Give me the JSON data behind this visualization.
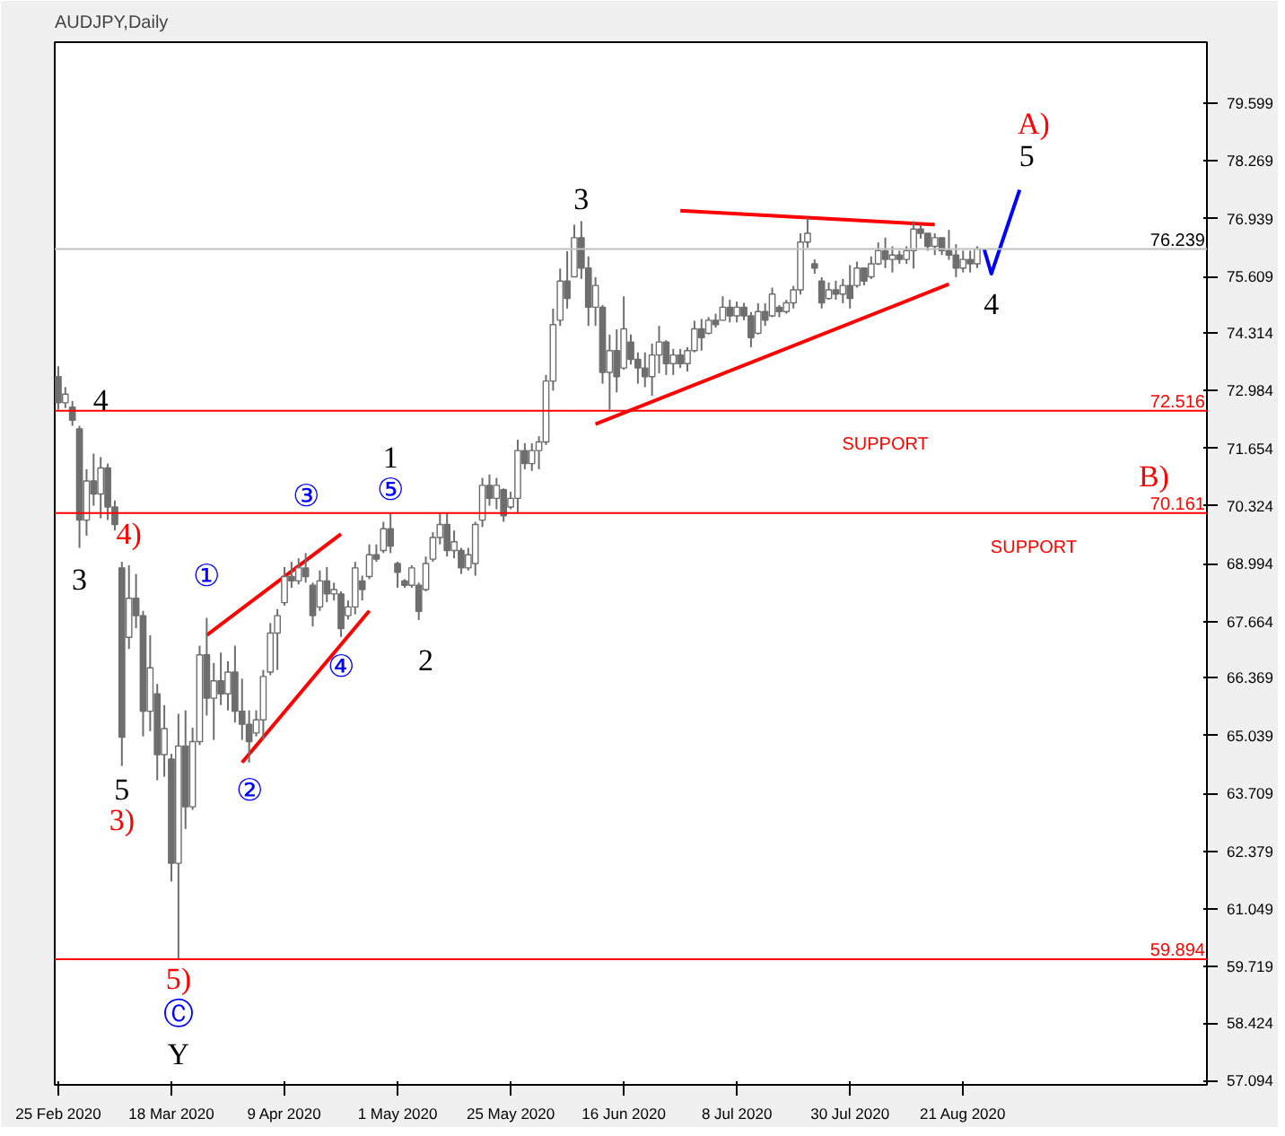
{
  "chart_data": {
    "type": "candlestick",
    "title": "AUDJPY,Daily",
    "categories": [
      "25 Feb 2020",
      null,
      null,
      null,
      null,
      null,
      null,
      null,
      null,
      null,
      null,
      null,
      null,
      null,
      null,
      null,
      "18 Mar 2020",
      null,
      null,
      null,
      null,
      null,
      null,
      null,
      null,
      null,
      null,
      null,
      null,
      null,
      null,
      null,
      "9 Apr 2020",
      null,
      null,
      null,
      null,
      null,
      null,
      null,
      null,
      null,
      null,
      null,
      null,
      null,
      null,
      null,
      "1 May 2020",
      null,
      null,
      null,
      null,
      null,
      null,
      null,
      null,
      null,
      null,
      null,
      null,
      null,
      null,
      null,
      "25 May 2020",
      null,
      null,
      null,
      null,
      null,
      null,
      null,
      null,
      null,
      null,
      null,
      null,
      null,
      null,
      null,
      "16 Jun 2020",
      null,
      null,
      null,
      null,
      null,
      null,
      null,
      null,
      null,
      null,
      null,
      null,
      null,
      null,
      null,
      "8 Jul 2020",
      null,
      null,
      null,
      null,
      null,
      null,
      null,
      null,
      null,
      null,
      null,
      null,
      null,
      null,
      null,
      "30 Jul 2020",
      null,
      null,
      null,
      null,
      null,
      null,
      null,
      null,
      null,
      null,
      null,
      null,
      null,
      null,
      null,
      "21 Aug 2020",
      null,
      null,
      null,
      null,
      null,
      null,
      null,
      null,
      null,
      null,
      null,
      null,
      null,
      null,
      null,
      null,
      null,
      null,
      null,
      null,
      null,
      null,
      null,
      null,
      null,
      null,
      null,
      null,
      null,
      null,
      null,
      null,
      null,
      null
    ],
    "ohlc": [
      [
        73.3,
        73.54,
        72.54,
        72.7
      ],
      [
        72.7,
        73.06,
        72.58,
        72.9
      ],
      [
        72.6,
        72.74,
        72.17,
        72.3
      ],
      [
        72.1,
        72.17,
        69.36,
        70.0
      ],
      [
        70.0,
        71.17,
        69.64,
        70.9
      ],
      [
        70.9,
        71.53,
        70.33,
        70.6
      ],
      [
        70.6,
        71.45,
        70.04,
        71.2
      ],
      [
        71.2,
        71.3,
        70.0,
        70.3
      ],
      [
        70.3,
        70.45,
        69.76,
        69.9
      ],
      [
        68.9,
        69.04,
        64.34,
        65.0
      ],
      [
        67.3,
        68.96,
        67.03,
        68.2
      ],
      [
        68.2,
        68.76,
        67.51,
        67.8
      ],
      [
        67.8,
        67.91,
        65.02,
        65.6
      ],
      [
        65.6,
        67.35,
        65.14,
        66.6
      ],
      [
        66.0,
        66.23,
        64.01,
        64.6
      ],
      [
        64.6,
        65.74,
        64.09,
        65.2
      ],
      [
        64.5,
        64.62,
        61.68,
        62.1
      ],
      [
        62.1,
        65.54,
        59.894,
        64.8
      ],
      [
        64.8,
        65.62,
        62.89,
        63.4
      ],
      [
        63.4,
        65.22,
        63.33,
        64.9
      ],
      [
        64.9,
        67.11,
        64.82,
        66.9
      ],
      [
        66.9,
        67.75,
        65.5,
        65.9
      ],
      [
        65.9,
        66.71,
        64.94,
        66.3
      ],
      [
        66.3,
        66.95,
        65.74,
        66.0
      ],
      [
        66.0,
        66.75,
        65.62,
        66.5
      ],
      [
        66.5,
        67.11,
        65.34,
        65.6
      ],
      [
        65.6,
        66.35,
        64.94,
        65.3
      ],
      [
        65.3,
        65.62,
        64.42,
        64.9
      ],
      [
        65.1,
        65.62,
        65.02,
        65.4
      ],
      [
        65.4,
        66.55,
        64.94,
        66.4
      ],
      [
        66.5,
        67.63,
        66.43,
        67.4
      ],
      [
        67.4,
        67.95,
        66.55,
        67.8
      ],
      [
        68.1,
        68.92,
        68.03,
        68.7
      ],
      [
        68.7,
        69.04,
        68.44,
        68.6
      ],
      [
        68.6,
        69.12,
        68.52,
        68.9
      ],
      [
        68.9,
        69.24,
        68.56,
        68.7
      ],
      [
        68.5,
        68.56,
        67.55,
        67.8
      ],
      [
        68.0,
        68.84,
        67.91,
        68.6
      ],
      [
        68.6,
        68.92,
        68.11,
        68.3
      ],
      [
        68.3,
        68.56,
        68.15,
        68.4
      ],
      [
        68.3,
        68.36,
        67.31,
        67.5
      ],
      [
        67.8,
        68.15,
        67.71,
        68.0
      ],
      [
        68.0,
        69.04,
        67.83,
        68.9
      ],
      [
        68.6,
        68.72,
        68.15,
        68.4
      ],
      [
        68.7,
        69.44,
        68.64,
        69.2
      ],
      [
        69.2,
        69.44,
        69.04,
        69.1
      ],
      [
        69.3,
        69.96,
        69.24,
        69.8
      ],
      [
        69.8,
        70.161,
        69.24,
        69.4
      ],
      [
        69.0,
        69.04,
        68.44,
        68.8
      ],
      [
        68.6,
        68.64,
        68.44,
        68.5
      ],
      [
        68.5,
        68.96,
        68.44,
        68.9
      ],
      [
        68.5,
        68.56,
        67.7,
        67.9
      ],
      [
        68.4,
        69.16,
        68.36,
        69.0
      ],
      [
        69.1,
        69.72,
        69.04,
        69.6
      ],
      [
        69.6,
        70.16,
        69.44,
        69.9
      ],
      [
        69.9,
        70.16,
        69.16,
        69.3
      ],
      [
        69.3,
        69.76,
        69.12,
        69.5
      ],
      [
        69.3,
        69.36,
        68.76,
        68.9
      ],
      [
        68.9,
        69.36,
        68.84,
        69.2
      ],
      [
        69.0,
        69.96,
        68.72,
        69.9
      ],
      [
        70.0,
        70.97,
        69.84,
        70.8
      ],
      [
        70.8,
        71.05,
        70.33,
        70.5
      ],
      [
        70.5,
        70.97,
        70.25,
        70.8
      ],
      [
        70.7,
        70.73,
        69.96,
        70.1
      ],
      [
        70.3,
        70.65,
        70.25,
        70.5
      ],
      [
        70.5,
        71.85,
        70.16,
        71.6
      ],
      [
        71.6,
        71.77,
        71.17,
        71.3
      ],
      [
        71.3,
        71.77,
        71.13,
        71.6
      ],
      [
        71.6,
        71.93,
        71.17,
        71.8
      ],
      [
        71.8,
        73.34,
        71.73,
        73.2
      ],
      [
        73.2,
        74.87,
        72.98,
        74.5
      ],
      [
        74.6,
        75.79,
        74.47,
        75.5
      ],
      [
        75.5,
        76.19,
        74.87,
        75.1
      ],
      [
        75.6,
        76.8,
        75.59,
        76.5
      ],
      [
        76.5,
        76.88,
        75.55,
        75.8
      ],
      [
        75.8,
        76.07,
        74.47,
        74.9
      ],
      [
        74.9,
        75.59,
        74.47,
        75.4
      ],
      [
        74.9,
        74.95,
        73.14,
        73.4
      ],
      [
        73.4,
        74.27,
        72.54,
        73.9
      ],
      [
        73.9,
        74.39,
        72.94,
        73.3
      ],
      [
        73.5,
        75.15,
        73.46,
        74.4
      ],
      [
        74.1,
        74.27,
        73.58,
        73.7
      ],
      [
        73.7,
        73.86,
        73.14,
        73.5
      ],
      [
        73.5,
        73.86,
        73.06,
        73.3
      ],
      [
        73.3,
        74.06,
        72.86,
        73.8
      ],
      [
        73.8,
        74.47,
        73.38,
        74.1
      ],
      [
        74.1,
        74.14,
        73.34,
        73.6
      ],
      [
        73.6,
        73.94,
        73.34,
        73.8
      ],
      [
        73.8,
        73.94,
        73.5,
        73.6
      ],
      [
        73.6,
        73.98,
        73.42,
        73.9
      ],
      [
        73.9,
        74.59,
        73.86,
        74.4
      ],
      [
        74.4,
        74.63,
        73.9,
        74.2
      ],
      [
        74.3,
        74.67,
        74.27,
        74.6
      ],
      [
        74.6,
        74.75,
        74.43,
        74.5
      ],
      [
        74.6,
        75.15,
        74.59,
        74.9
      ],
      [
        74.9,
        75.07,
        74.55,
        74.7
      ],
      [
        74.7,
        75.03,
        74.55,
        74.9
      ],
      [
        74.9,
        75.0,
        74.6,
        74.7
      ],
      [
        74.7,
        74.79,
        73.98,
        74.2
      ],
      [
        74.3,
        74.99,
        74.27,
        74.8
      ],
      [
        74.8,
        74.99,
        74.47,
        74.6
      ],
      [
        74.7,
        75.35,
        74.67,
        75.2
      ],
      [
        74.9,
        74.95,
        74.67,
        74.8
      ],
      [
        74.8,
        75.07,
        74.75,
        75.0
      ],
      [
        75.0,
        75.39,
        74.87,
        75.3
      ],
      [
        75.3,
        76.6,
        75.19,
        76.4
      ],
      [
        76.4,
        76.96,
        76.27,
        76.6
      ],
      [
        75.9,
        76.0,
        75.67,
        75.8
      ],
      [
        75.5,
        75.59,
        74.87,
        75.0
      ],
      [
        75.1,
        75.47,
        75.07,
        75.3
      ],
      [
        75.3,
        75.51,
        75.07,
        75.2
      ],
      [
        75.2,
        75.55,
        74.99,
        75.4
      ],
      [
        75.4,
        75.87,
        74.87,
        75.1
      ],
      [
        75.4,
        75.95,
        75.35,
        75.8
      ],
      [
        75.8,
        75.8,
        75.4,
        75.5
      ],
      [
        75.6,
        76.07,
        75.55,
        75.9
      ],
      [
        75.9,
        76.39,
        75.87,
        76.2
      ],
      [
        76.2,
        76.5,
        75.8,
        76.0
      ],
      [
        76.0,
        76.3,
        75.7,
        76.1
      ],
      [
        76.1,
        76.2,
        75.9,
        76.0
      ],
      [
        76.0,
        76.3,
        75.9,
        76.2
      ],
      [
        76.2,
        76.88,
        75.79,
        76.7
      ],
      [
        76.7,
        76.8,
        76.48,
        76.6
      ],
      [
        76.6,
        76.6,
        76.2,
        76.3
      ],
      [
        76.3,
        76.6,
        76.1,
        76.5
      ],
      [
        76.5,
        76.5,
        76.1,
        76.2
      ],
      [
        76.2,
        76.68,
        75.99,
        76.1
      ],
      [
        76.1,
        76.35,
        75.59,
        75.8
      ],
      [
        75.8,
        76.2,
        75.7,
        76.0
      ],
      [
        76.0,
        76.2,
        75.7,
        75.9
      ],
      [
        75.9,
        76.3,
        75.8,
        76.239
      ],
      null,
      null,
      null,
      null,
      null,
      null,
      null,
      null,
      null,
      null,
      null,
      null,
      null,
      null,
      null,
      null,
      null,
      null,
      null,
      null,
      null,
      null,
      null,
      null,
      null,
      null,
      null,
      null,
      null,
      null,
      null,
      null
    ],
    "color": "#6e6e6e",
    "series": [
      {
        "type": "line",
        "color": "#ff0000",
        "values": [
          null,
          null,
          null,
          null,
          null,
          null,
          null,
          null,
          null,
          null,
          null,
          null,
          null,
          null,
          null,
          null,
          null,
          null,
          null,
          null,
          null,
          67.35,
          null,
          null,
          null,
          null,
          null,
          null,
          null,
          null,
          null,
          null,
          null,
          null,
          null,
          null,
          null,
          null,
          null,
          null,
          69.68,
          null,
          null,
          null,
          null,
          null,
          null,
          null,
          null,
          null,
          null,
          null,
          null,
          null,
          null,
          null,
          null,
          null,
          null,
          null,
          null,
          null,
          null,
          null,
          null,
          null,
          null,
          null,
          null,
          null,
          null,
          null,
          null,
          null,
          null,
          null,
          null,
          null,
          null,
          null,
          null,
          null,
          null,
          null,
          null,
          null,
          null,
          null,
          null,
          null,
          null,
          null,
          null,
          null,
          null,
          null,
          null,
          null,
          null,
          null,
          null,
          null,
          null,
          null,
          null,
          null,
          null,
          null,
          null,
          null,
          null,
          null,
          null,
          null,
          null,
          null,
          null,
          null,
          null,
          null,
          null,
          null,
          null,
          null,
          null,
          null,
          null,
          null,
          null,
          null,
          null,
          null,
          null,
          null,
          null,
          null,
          null,
          null,
          null,
          null,
          null,
          null,
          null,
          null,
          null,
          null,
          null,
          null,
          null,
          null,
          null,
          null,
          null,
          null,
          null,
          null,
          null,
          null,
          null,
          null,
          null,
          null,
          null
        ]
      },
      {
        "type": "line",
        "color": "#ff0000",
        "values": [
          null,
          null,
          null,
          null,
          null,
          null,
          null,
          null,
          null,
          null,
          null,
          null,
          null,
          null,
          null,
          null,
          null,
          null,
          null,
          null,
          null,
          null,
          null,
          null,
          null,
          null,
          64.42,
          null,
          null,
          null,
          null,
          null,
          null,
          null,
          null,
          null,
          null,
          null,
          null,
          null,
          null,
          null,
          null,
          null,
          67.91,
          null,
          null,
          null,
          null,
          null,
          null,
          null,
          null,
          null,
          null,
          null,
          null,
          null,
          null,
          null,
          null,
          null,
          null,
          null,
          null,
          null,
          null,
          null,
          null,
          null,
          null,
          null,
          null,
          null,
          null,
          null,
          null,
          null,
          null,
          null,
          null,
          null,
          null,
          null,
          null,
          null,
          null,
          null,
          null,
          null,
          null,
          null,
          null,
          null,
          null,
          null,
          null,
          null,
          null,
          null,
          null,
          null,
          null,
          null,
          null,
          null,
          null,
          null,
          null,
          null,
          null,
          null,
          null,
          null,
          null,
          null,
          null,
          null,
          null,
          null,
          null,
          null,
          null,
          null,
          null,
          null,
          null,
          null,
          null,
          null,
          null,
          null,
          null,
          null,
          null,
          null,
          null,
          null,
          null,
          null,
          null,
          null,
          null,
          null,
          null,
          null,
          null,
          null,
          null,
          null,
          null,
          null,
          null,
          null,
          null,
          null,
          null,
          null,
          null,
          null,
          null,
          null,
          null
        ]
      },
      {
        "type": "line",
        "color": "#ff0000",
        "values": [
          null,
          null,
          null,
          null,
          null,
          null,
          null,
          null,
          null,
          null,
          null,
          null,
          null,
          null,
          null,
          null,
          null,
          null,
          null,
          null,
          null,
          null,
          null,
          null,
          null,
          null,
          null,
          null,
          null,
          null,
          null,
          null,
          null,
          null,
          null,
          null,
          null,
          null,
          null,
          null,
          null,
          null,
          null,
          null,
          null,
          null,
          null,
          null,
          null,
          null,
          null,
          null,
          null,
          null,
          null,
          null,
          null,
          null,
          null,
          null,
          null,
          null,
          null,
          null,
          null,
          null,
          null,
          null,
          null,
          null,
          null,
          null,
          null,
          null,
          null,
          null,
          null,
          null,
          null,
          null,
          null,
          null,
          null,
          null,
          null,
          null,
          null,
          null,
          77.12,
          null,
          null,
          null,
          null,
          null,
          null,
          null,
          null,
          null,
          null,
          null,
          null,
          null,
          null,
          null,
          null,
          null,
          null,
          null,
          null,
          null,
          null,
          null,
          null,
          null,
          null,
          null,
          null,
          null,
          null,
          null,
          null,
          null,
          null,
          null,
          76.8,
          null,
          null,
          null,
          null,
          null,
          null,
          null,
          null,
          null,
          null,
          null,
          null,
          null,
          null,
          null,
          null,
          null,
          null,
          null,
          null,
          null,
          null,
          null,
          null,
          null,
          null,
          null,
          null,
          null,
          null,
          null,
          null,
          null,
          null,
          null,
          null,
          null,
          null
        ]
      },
      {
        "type": "line",
        "color": "#ff0000",
        "values": [
          null,
          null,
          null,
          null,
          null,
          null,
          null,
          null,
          null,
          null,
          null,
          null,
          null,
          null,
          null,
          null,
          null,
          null,
          null,
          null,
          null,
          null,
          null,
          null,
          null,
          null,
          null,
          null,
          null,
          null,
          null,
          null,
          null,
          null,
          null,
          null,
          null,
          null,
          null,
          null,
          null,
          null,
          null,
          null,
          null,
          null,
          null,
          null,
          null,
          null,
          null,
          null,
          null,
          null,
          null,
          null,
          null,
          null,
          null,
          null,
          null,
          null,
          null,
          null,
          null,
          null,
          null,
          null,
          null,
          null,
          null,
          null,
          null,
          null,
          null,
          null,
          72.21,
          null,
          null,
          null,
          null,
          null,
          null,
          null,
          null,
          null,
          null,
          null,
          null,
          null,
          null,
          null,
          null,
          null,
          null,
          null,
          null,
          null,
          null,
          null,
          null,
          null,
          null,
          null,
          null,
          null,
          null,
          null,
          null,
          null,
          null,
          null,
          null,
          null,
          null,
          null,
          null,
          null,
          null,
          null,
          null,
          null,
          null,
          null,
          null,
          null,
          75.43,
          null,
          null,
          null,
          null,
          null,
          null,
          null,
          null,
          null,
          null,
          null,
          null,
          null,
          null,
          null,
          null,
          null,
          null,
          null,
          null,
          null,
          null,
          null,
          null,
          null,
          null,
          null,
          null,
          null,
          null,
          null,
          null,
          null,
          null,
          null,
          null
        ]
      },
      {
        "type": "line",
        "color": "#0000ff",
        "values": [
          null,
          null,
          null,
          null,
          null,
          null,
          null,
          null,
          null,
          null,
          null,
          null,
          null,
          null,
          null,
          null,
          null,
          null,
          null,
          null,
          null,
          null,
          null,
          null,
          null,
          null,
          null,
          null,
          null,
          null,
          null,
          null,
          null,
          null,
          null,
          null,
          null,
          null,
          null,
          null,
          null,
          null,
          null,
          null,
          null,
          null,
          null,
          null,
          null,
          null,
          null,
          null,
          null,
          null,
          null,
          null,
          null,
          null,
          null,
          null,
          null,
          null,
          null,
          null,
          null,
          null,
          null,
          null,
          null,
          null,
          null,
          null,
          null,
          null,
          null,
          null,
          null,
          null,
          null,
          null,
          null,
          null,
          null,
          null,
          null,
          null,
          null,
          null,
          null,
          null,
          null,
          null,
          null,
          null,
          null,
          null,
          null,
          null,
          null,
          null,
          null,
          null,
          null,
          null,
          null,
          null,
          null,
          null,
          null,
          null,
          null,
          null,
          null,
          null,
          null,
          null,
          null,
          null,
          null,
          null,
          null,
          null,
          null,
          null,
          null,
          null,
          null,
          null,
          null,
          null,
          null,
          76.23,
          75.67,
          null,
          null,
          null,
          77.6,
          null,
          null,
          null,
          null,
          null,
          null,
          null,
          null,
          null,
          null,
          null,
          null,
          null,
          null,
          null,
          null,
          null,
          null,
          null,
          null,
          null,
          null,
          null,
          null,
          null,
          null
        ]
      }
    ],
    "ylim": [
      57.0,
      81.0
    ],
    "yticks": [
      57.094,
      58.424,
      59.719,
      61.049,
      62.379,
      63.709,
      65.039,
      66.369,
      67.664,
      68.994,
      70.324,
      71.654,
      72.984,
      74.314,
      75.609,
      76.939,
      78.269,
      79.599
    ],
    "grid": false,
    "ref_lines": [
      {
        "axis": "y",
        "value": 76.239,
        "label": "76.239",
        "color": "#c0c0c0"
      },
      {
        "axis": "y",
        "value": 72.516,
        "label": "72.516",
        "color": "#ff0000"
      },
      {
        "axis": "y",
        "value": 70.161,
        "label": "70.161",
        "color": "#ff0000"
      },
      {
        "axis": "y",
        "value": 59.894,
        "label": "59.894",
        "color": "#ff0000"
      }
    ],
    "annotations": [
      "4",
      "3",
      "4)",
      "5",
      "3)",
      "5)",
      "Ⓒ",
      "Y",
      "①",
      "②",
      "③",
      "④",
      "⑤",
      "1",
      "2",
      "3",
      "A)",
      "5",
      "4",
      "B)",
      "SUPPORT",
      "SUPPORT"
    ]
  }
}
